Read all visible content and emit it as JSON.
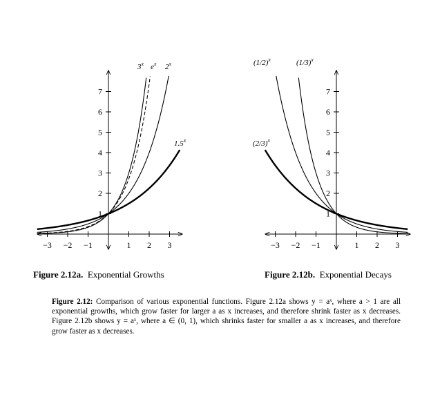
{
  "chart_data": [
    {
      "type": "line",
      "x_ticks": [
        "−3",
        "−2",
        "−1",
        "1",
        "2",
        "3"
      ],
      "y_ticks": [
        "1",
        "2",
        "3",
        "4",
        "5",
        "6",
        "7"
      ],
      "xlim": [
        -3.5,
        3.5
      ],
      "ylim": [
        0,
        7.8
      ],
      "series": [
        {
          "name": "3^x",
          "base": 3,
          "style": "thin"
        },
        {
          "name": "e^x",
          "base": 2.71828,
          "style": "dashed"
        },
        {
          "name": "2^x",
          "base": 2,
          "style": "thin"
        },
        {
          "name": "1.5^x",
          "base": 1.5,
          "style": "thick"
        }
      ],
      "series_labels": {
        "three": "3",
        "e": "e",
        "two": "2",
        "onefive": "1.5",
        "exp": "x"
      }
    },
    {
      "type": "line",
      "x_ticks": [
        "−3",
        "−2",
        "−1",
        "1",
        "2",
        "3"
      ],
      "y_ticks": [
        "1",
        "2",
        "3",
        "4",
        "5",
        "6",
        "7"
      ],
      "xlim": [
        -3.5,
        3.5
      ],
      "ylim": [
        0,
        7.8
      ],
      "series": [
        {
          "name": "(1/2)^x",
          "base": 0.5,
          "style": "thin"
        },
        {
          "name": "(1/3)^x",
          "base": 0.3333,
          "style": "thin"
        },
        {
          "name": "(2/3)^x",
          "base": 0.6667,
          "style": "thick"
        }
      ],
      "series_labels": {
        "half": "(1/2)",
        "third": "(1/3)",
        "twothirds": "(2/3)",
        "exp": "x"
      }
    }
  ],
  "figures": {
    "a_label": "Figure 2.12a.",
    "a_title": "Exponential Growths",
    "b_label": "Figure 2.12b.",
    "b_title": "Exponential Decays"
  },
  "caption": {
    "label": "Figure 2.12:",
    "text": "Comparison of various exponential functions. Figure 2.12a shows y = aˣ, where a > 1 are all exponential growths, which grow faster for larger a as x increases, and therefore shrink faster as x decreases. Figure 2.12b shows y = aˣ, where a ∈ (0, 1), which shrinks faster for smaller a as x increases, and therefore grow faster as x decreases."
  }
}
